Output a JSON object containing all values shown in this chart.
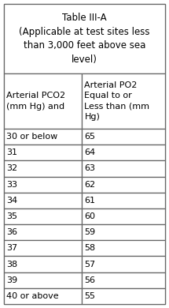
{
  "title_line1": "Table III-A",
  "title_line2": "(Applicable at test sites less\nthan 3,000 feet above sea\nlevel)",
  "col1_header_line1": "Arterial PCO2",
  "col1_header_line2": "(mm Hg) and",
  "col2_header_line1": "Arterial PO2",
  "col2_header_line2": "Equal to or\nLess than (mm\nHg)",
  "rows": [
    [
      "30 or below",
      "65"
    ],
    [
      "31",
      "64"
    ],
    [
      "32",
      "63"
    ],
    [
      "33",
      "62"
    ],
    [
      "34",
      "61"
    ],
    [
      "35",
      "60"
    ],
    [
      "36",
      "59"
    ],
    [
      "37",
      "58"
    ],
    [
      "38",
      "57"
    ],
    [
      "39",
      "56"
    ],
    [
      "40 or above",
      "55"
    ]
  ],
  "bg_color": "#ffffff",
  "border_color": "#666666",
  "text_color": "#000000",
  "font_size": 8.0,
  "header_font_size": 8.0,
  "title_font_size": 8.5,
  "fig_width": 2.15,
  "fig_height": 3.9,
  "dpi": 100
}
